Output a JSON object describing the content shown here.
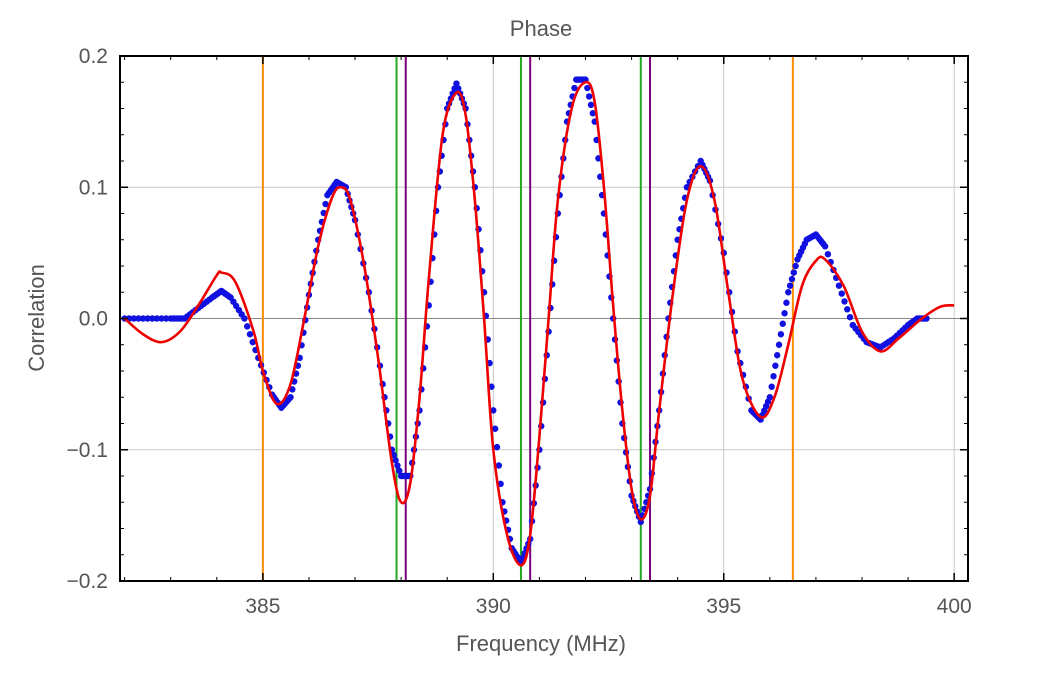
{
  "chart_data": {
    "type": "scatter",
    "title": "Phase",
    "xlabel": "Frequency (MHz)",
    "ylabel": "Correlation",
    "xlim": [
      381.9,
      400.3
    ],
    "ylim": [
      -0.2,
      0.2
    ],
    "x_ticks": [
      385,
      390,
      395,
      400
    ],
    "x_tick_labels": [
      "385",
      "390",
      "395",
      "400"
    ],
    "y_ticks": [
      -0.2,
      -0.1,
      0.0,
      0.1,
      0.2
    ],
    "y_tick_labels": [
      "−0.2",
      "−0.1",
      "0.0",
      "0.1",
      "0.2"
    ],
    "grid": true,
    "legend": "none",
    "series": [
      {
        "kind": "scatter",
        "color": "#1010e0",
        "points": [
          [
            382.0,
            0.0
          ],
          [
            382.5,
            0.0
          ],
          [
            383.0,
            0.0
          ],
          [
            383.3,
            0.0
          ],
          [
            383.6,
            0.008
          ],
          [
            383.9,
            0.016
          ],
          [
            384.1,
            0.021
          ],
          [
            384.3,
            0.016
          ],
          [
            384.6,
            0.0
          ],
          [
            384.9,
            -0.03
          ],
          [
            385.2,
            -0.058
          ],
          [
            385.4,
            -0.068
          ],
          [
            385.6,
            -0.06
          ],
          [
            385.8,
            -0.03
          ],
          [
            386.0,
            0.018
          ],
          [
            386.2,
            0.06
          ],
          [
            386.4,
            0.094
          ],
          [
            386.6,
            0.104
          ],
          [
            386.8,
            0.1
          ],
          [
            387.0,
            0.075
          ],
          [
            387.3,
            0.02
          ],
          [
            387.6,
            -0.05
          ],
          [
            387.8,
            -0.1
          ],
          [
            388.0,
            -0.12
          ],
          [
            388.2,
            -0.12
          ],
          [
            388.4,
            -0.07
          ],
          [
            388.6,
            0.01
          ],
          [
            388.8,
            0.1
          ],
          [
            389.0,
            0.16
          ],
          [
            389.2,
            0.179
          ],
          [
            389.4,
            0.16
          ],
          [
            389.6,
            0.1
          ],
          [
            389.8,
            0.02
          ],
          [
            390.0,
            -0.07
          ],
          [
            390.2,
            -0.14
          ],
          [
            390.4,
            -0.175
          ],
          [
            390.6,
            -0.186
          ],
          [
            390.8,
            -0.168
          ],
          [
            391.0,
            -0.1
          ],
          [
            391.2,
            -0.01
          ],
          [
            391.4,
            0.08
          ],
          [
            391.6,
            0.15
          ],
          [
            391.8,
            0.182
          ],
          [
            392.0,
            0.182
          ],
          [
            392.2,
            0.15
          ],
          [
            392.4,
            0.08
          ],
          [
            392.6,
            0.0
          ],
          [
            392.8,
            -0.08
          ],
          [
            393.0,
            -0.135
          ],
          [
            393.2,
            -0.155
          ],
          [
            393.4,
            -0.13
          ],
          [
            393.6,
            -0.07
          ],
          [
            393.8,
            0.0
          ],
          [
            394.0,
            0.06
          ],
          [
            394.2,
            0.1
          ],
          [
            394.5,
            0.12
          ],
          [
            394.7,
            0.105
          ],
          [
            395.0,
            0.05
          ],
          [
            395.3,
            -0.025
          ],
          [
            395.6,
            -0.07
          ],
          [
            395.8,
            -0.077
          ],
          [
            396.0,
            -0.06
          ],
          [
            396.2,
            -0.02
          ],
          [
            396.4,
            0.02
          ],
          [
            396.6,
            0.045
          ],
          [
            396.8,
            0.06
          ],
          [
            397.0,
            0.064
          ],
          [
            397.2,
            0.055
          ],
          [
            397.5,
            0.025
          ],
          [
            397.8,
            -0.005
          ],
          [
            398.1,
            -0.018
          ],
          [
            398.4,
            -0.022
          ],
          [
            398.7,
            -0.015
          ],
          [
            399.0,
            -0.005
          ],
          [
            399.2,
            0.0
          ],
          [
            399.4,
            0.0
          ]
        ]
      },
      {
        "kind": "line",
        "color": "#ee0000",
        "points": [
          [
            382.0,
            0.0
          ],
          [
            382.4,
            -0.012
          ],
          [
            382.8,
            -0.018
          ],
          [
            383.2,
            -0.01
          ],
          [
            383.6,
            0.01
          ],
          [
            384.0,
            0.033
          ],
          [
            384.1,
            0.035
          ],
          [
            384.4,
            0.028
          ],
          [
            384.8,
            -0.01
          ],
          [
            385.0,
            -0.04
          ],
          [
            385.3,
            -0.065
          ],
          [
            385.6,
            -0.05
          ],
          [
            385.9,
            0.0
          ],
          [
            386.2,
            0.055
          ],
          [
            386.5,
            0.092
          ],
          [
            386.7,
            0.1
          ],
          [
            386.9,
            0.09
          ],
          [
            387.2,
            0.04
          ],
          [
            387.5,
            -0.03
          ],
          [
            387.8,
            -0.11
          ],
          [
            388.0,
            -0.14
          ],
          [
            388.2,
            -0.125
          ],
          [
            388.4,
            -0.06
          ],
          [
            388.6,
            0.03
          ],
          [
            388.9,
            0.14
          ],
          [
            389.2,
            0.172
          ],
          [
            389.4,
            0.155
          ],
          [
            389.6,
            0.09
          ],
          [
            389.8,
            0.0
          ],
          [
            390.0,
            -0.1
          ],
          [
            390.3,
            -0.165
          ],
          [
            390.6,
            -0.188
          ],
          [
            390.8,
            -0.165
          ],
          [
            391.0,
            -0.09
          ],
          [
            391.2,
            0.0
          ],
          [
            391.4,
            0.09
          ],
          [
            391.7,
            0.16
          ],
          [
            392.0,
            0.18
          ],
          [
            392.2,
            0.165
          ],
          [
            392.4,
            0.1
          ],
          [
            392.6,
            0.01
          ],
          [
            392.8,
            -0.07
          ],
          [
            393.0,
            -0.13
          ],
          [
            393.2,
            -0.153
          ],
          [
            393.4,
            -0.135
          ],
          [
            393.6,
            -0.07
          ],
          [
            393.9,
            0.02
          ],
          [
            394.2,
            0.09
          ],
          [
            394.5,
            0.116
          ],
          [
            394.8,
            0.09
          ],
          [
            395.1,
            0.02
          ],
          [
            395.4,
            -0.045
          ],
          [
            395.8,
            -0.075
          ],
          [
            396.1,
            -0.06
          ],
          [
            396.4,
            -0.02
          ],
          [
            396.7,
            0.025
          ],
          [
            397.0,
            0.044
          ],
          [
            397.2,
            0.045
          ],
          [
            397.6,
            0.025
          ],
          [
            398.0,
            -0.01
          ],
          [
            398.4,
            -0.025
          ],
          [
            398.8,
            -0.015
          ],
          [
            399.3,
            0.0
          ],
          [
            399.7,
            0.009
          ],
          [
            400.0,
            0.01
          ]
        ]
      }
    ],
    "vertical_lines": [
      {
        "x": 385.0,
        "color": "#ff8c00"
      },
      {
        "x": 396.5,
        "color": "#ff8c00"
      },
      {
        "x": 387.9,
        "color": "#22aa22"
      },
      {
        "x": 390.6,
        "color": "#22aa22"
      },
      {
        "x": 393.2,
        "color": "#22aa22"
      },
      {
        "x": 388.1,
        "color": "#7a007a"
      },
      {
        "x": 390.8,
        "color": "#7a007a"
      },
      {
        "x": 393.4,
        "color": "#7a007a"
      }
    ]
  }
}
